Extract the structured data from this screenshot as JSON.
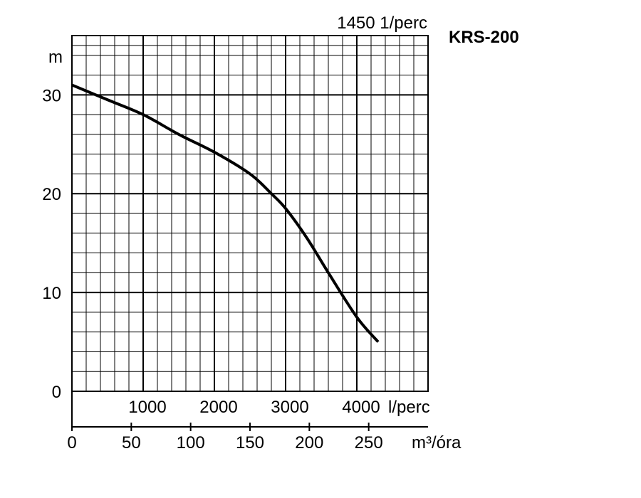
{
  "chart_data": {
    "type": "line",
    "title": "KRS-200",
    "subtitle": "1450 1/perc",
    "ylabel": "m",
    "ylim": [
      0,
      30
    ],
    "y_ticks": [
      "0",
      "10",
      "20",
      "30"
    ],
    "grid": true,
    "x_axes": [
      {
        "unit": "l/perc",
        "ticks": [
          "1000",
          "2000",
          "3000",
          "4000"
        ],
        "xlim": [
          0,
          5000
        ]
      },
      {
        "unit": "m³/óra",
        "ticks": [
          "0",
          "50",
          "100",
          "150",
          "200",
          "250"
        ],
        "xlim": [
          0,
          300
        ]
      }
    ],
    "series": [
      {
        "x_lpm": [
          0,
          500,
          1000,
          1500,
          2000,
          2500,
          2800,
          3000,
          3300,
          3600,
          4000,
          4300
        ],
        "y": [
          31,
          29.5,
          28,
          26,
          24.2,
          22,
          20,
          18.5,
          15.5,
          12,
          7.5,
          5
        ]
      }
    ]
  }
}
